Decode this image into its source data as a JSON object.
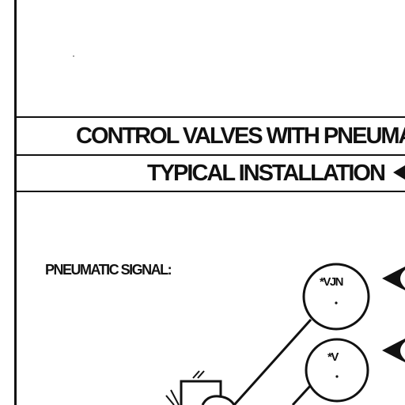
{
  "title_main": "CONTROL VALVES WITH PNEUMAT",
  "title_sub": "TYPICAL INSTALLATION",
  "signal_label": "PNEUMATIC SIGNAL:",
  "nodes": {
    "vjn": {
      "label": "*VJN"
    },
    "v": {
      "label": "*V"
    }
  },
  "colors": {
    "ink": "#111111",
    "paper": "#ffffff"
  }
}
